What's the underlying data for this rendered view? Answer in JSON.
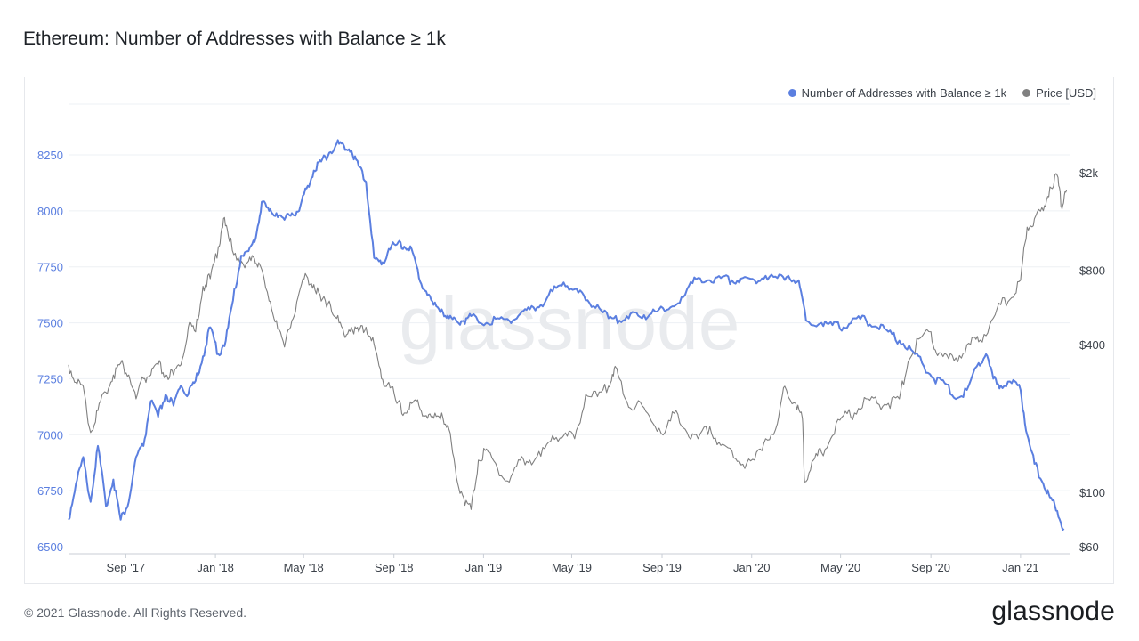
{
  "page": {
    "title": "Ethereum: Number of Addresses with Balance ≥ 1k",
    "footer": "© 2021 Glassnode. All Rights Reserved.",
    "brand": "glassnode",
    "watermark": "glassnode"
  },
  "colors": {
    "addresses": "#5b7fe0",
    "price": "#808080",
    "grid": "#edf0f4",
    "left_axis_text": "#5b7fe0",
    "right_axis_text": "#3b4149"
  },
  "chart_data": {
    "type": "line",
    "title": "Ethereum: Number of Addresses with Balance ≥ 1k",
    "x_ticks": [
      "Sep '17",
      "Jan '18",
      "May '18",
      "Sep '18",
      "Jan '19",
      "May '19",
      "Sep '19",
      "Jan '20",
      "May '20",
      "Sep '20",
      "Jan '21"
    ],
    "x_tick_dates": [
      "2017-09-01",
      "2018-01-01",
      "2018-05-01",
      "2018-09-01",
      "2019-01-01",
      "2019-05-01",
      "2019-09-01",
      "2020-01-01",
      "2020-05-01",
      "2020-09-01",
      "2021-01-01"
    ],
    "x_range": [
      "2017-06-15",
      "2021-03-10"
    ],
    "y_left": {
      "ticks": [
        6500,
        6750,
        7000,
        7250,
        7500,
        7750,
        8000,
        8250
      ],
      "range": [
        6500,
        8350
      ],
      "scale": "linear"
    },
    "y_right": {
      "ticks": [
        60,
        100,
        400,
        800,
        2000
      ],
      "tick_labels": [
        "$60",
        "$100",
        "$400",
        "$800",
        "$2k"
      ],
      "range": [
        60,
        2800
      ],
      "scale": "log"
    },
    "grid": true,
    "legend_position": "top-right",
    "series": [
      {
        "name": "Number of Addresses with Balance ≥ 1k",
        "axis": "left",
        "color": "#5b7fe0",
        "points": [
          [
            "2017-06-15",
            6620
          ],
          [
            "2017-06-25",
            6780
          ],
          [
            "2017-07-05",
            6900
          ],
          [
            "2017-07-15",
            6700
          ],
          [
            "2017-07-25",
            6950
          ],
          [
            "2017-08-05",
            6680
          ],
          [
            "2017-08-15",
            6800
          ],
          [
            "2017-08-25",
            6620
          ],
          [
            "2017-09-05",
            6700
          ],
          [
            "2017-09-15",
            6900
          ],
          [
            "2017-09-25",
            6950
          ],
          [
            "2017-10-05",
            7150
          ],
          [
            "2017-10-15",
            7080
          ],
          [
            "2017-10-25",
            7180
          ],
          [
            "2017-11-05",
            7130
          ],
          [
            "2017-11-15",
            7220
          ],
          [
            "2017-11-25",
            7180
          ],
          [
            "2017-12-05",
            7240
          ],
          [
            "2017-12-15",
            7350
          ],
          [
            "2017-12-25",
            7480
          ],
          [
            "2018-01-05",
            7360
          ],
          [
            "2018-01-15",
            7420
          ],
          [
            "2018-01-25",
            7600
          ],
          [
            "2018-02-05",
            7800
          ],
          [
            "2018-02-15",
            7820
          ],
          [
            "2018-02-25",
            7880
          ],
          [
            "2018-03-05",
            8040
          ],
          [
            "2018-03-15",
            8000
          ],
          [
            "2018-03-25",
            7990
          ],
          [
            "2018-04-05",
            7960
          ],
          [
            "2018-04-15",
            7990
          ],
          [
            "2018-04-25",
            8000
          ],
          [
            "2018-05-05",
            8100
          ],
          [
            "2018-05-15",
            8180
          ],
          [
            "2018-05-25",
            8220
          ],
          [
            "2018-06-05",
            8260
          ],
          [
            "2018-06-15",
            8300
          ],
          [
            "2018-06-25",
            8290
          ],
          [
            "2018-07-05",
            8270
          ],
          [
            "2018-07-15",
            8200
          ],
          [
            "2018-07-25",
            8130
          ],
          [
            "2018-08-05",
            7790
          ],
          [
            "2018-08-15",
            7760
          ],
          [
            "2018-08-25",
            7830
          ],
          [
            "2018-09-05",
            7850
          ],
          [
            "2018-09-15",
            7840
          ],
          [
            "2018-09-25",
            7830
          ],
          [
            "2018-10-05",
            7700
          ],
          [
            "2018-10-15",
            7640
          ],
          [
            "2018-10-25",
            7580
          ],
          [
            "2018-11-05",
            7560
          ],
          [
            "2018-11-15",
            7520
          ],
          [
            "2018-11-25",
            7510
          ],
          [
            "2018-12-05",
            7510
          ],
          [
            "2018-12-15",
            7530
          ],
          [
            "2019-01-05",
            7500
          ],
          [
            "2019-01-20",
            7520
          ],
          [
            "2019-02-05",
            7510
          ],
          [
            "2019-02-20",
            7540
          ],
          [
            "2019-03-05",
            7560
          ],
          [
            "2019-03-20",
            7580
          ],
          [
            "2019-04-05",
            7640
          ],
          [
            "2019-04-20",
            7680
          ],
          [
            "2019-05-05",
            7650
          ],
          [
            "2019-05-20",
            7600
          ],
          [
            "2019-06-05",
            7580
          ],
          [
            "2019-06-20",
            7520
          ],
          [
            "2019-07-05",
            7510
          ],
          [
            "2019-07-20",
            7540
          ],
          [
            "2019-08-05",
            7520
          ],
          [
            "2019-08-20",
            7560
          ],
          [
            "2019-09-05",
            7550
          ],
          [
            "2019-09-20",
            7580
          ],
          [
            "2019-10-05",
            7650
          ],
          [
            "2019-10-20",
            7700
          ],
          [
            "2019-11-05",
            7690
          ],
          [
            "2019-11-20",
            7700
          ],
          [
            "2019-12-05",
            7690
          ],
          [
            "2019-12-20",
            7700
          ],
          [
            "2020-01-05",
            7690
          ],
          [
            "2020-01-20",
            7710
          ],
          [
            "2020-02-05",
            7700
          ],
          [
            "2020-02-20",
            7710
          ],
          [
            "2020-03-05",
            7690
          ],
          [
            "2020-03-15",
            7510
          ],
          [
            "2020-04-05",
            7500
          ],
          [
            "2020-04-20",
            7490
          ],
          [
            "2020-05-05",
            7480
          ],
          [
            "2020-05-20",
            7520
          ],
          [
            "2020-06-05",
            7510
          ],
          [
            "2020-06-20",
            7480
          ],
          [
            "2020-07-05",
            7460
          ],
          [
            "2020-07-20",
            7420
          ],
          [
            "2020-08-05",
            7380
          ],
          [
            "2020-08-20",
            7320
          ],
          [
            "2020-09-05",
            7250
          ],
          [
            "2020-09-20",
            7230
          ],
          [
            "2020-10-05",
            7160
          ],
          [
            "2020-10-20",
            7200
          ],
          [
            "2020-11-05",
            7320
          ],
          [
            "2020-11-15",
            7360
          ],
          [
            "2020-11-25",
            7250
          ],
          [
            "2020-12-05",
            7220
          ],
          [
            "2020-12-20",
            7230
          ],
          [
            "2021-01-01",
            7200
          ],
          [
            "2021-01-10",
            7000
          ],
          [
            "2021-01-20",
            6870
          ],
          [
            "2021-02-01",
            6780
          ],
          [
            "2021-02-10",
            6720
          ],
          [
            "2021-02-20",
            6660
          ],
          [
            "2021-03-01",
            6580
          ]
        ]
      },
      {
        "name": "Price [USD]",
        "axis": "right",
        "color": "#808080",
        "points": [
          [
            "2017-06-15",
            330
          ],
          [
            "2017-06-25",
            280
          ],
          [
            "2017-07-05",
            270
          ],
          [
            "2017-07-15",
            175
          ],
          [
            "2017-07-25",
            215
          ],
          [
            "2017-08-05",
            255
          ],
          [
            "2017-08-15",
            300
          ],
          [
            "2017-08-25",
            335
          ],
          [
            "2017-09-05",
            300
          ],
          [
            "2017-09-15",
            240
          ],
          [
            "2017-09-25",
            290
          ],
          [
            "2017-10-05",
            300
          ],
          [
            "2017-10-15",
            330
          ],
          [
            "2017-10-25",
            300
          ],
          [
            "2017-11-05",
            300
          ],
          [
            "2017-11-15",
            330
          ],
          [
            "2017-11-25",
            470
          ],
          [
            "2017-12-05",
            450
          ],
          [
            "2017-12-15",
            690
          ],
          [
            "2017-12-25",
            740
          ],
          [
            "2018-01-05",
            1000
          ],
          [
            "2018-01-12",
            1300
          ],
          [
            "2018-01-20",
            1050
          ],
          [
            "2018-02-01",
            900
          ],
          [
            "2018-02-10",
            820
          ],
          [
            "2018-02-20",
            920
          ],
          [
            "2018-03-01",
            860
          ],
          [
            "2018-03-15",
            600
          ],
          [
            "2018-03-25",
            500
          ],
          [
            "2018-04-05",
            390
          ],
          [
            "2018-04-15",
            500
          ],
          [
            "2018-04-25",
            650
          ],
          [
            "2018-05-05",
            760
          ],
          [
            "2018-05-15",
            700
          ],
          [
            "2018-05-25",
            600
          ],
          [
            "2018-06-05",
            600
          ],
          [
            "2018-06-15",
            510
          ],
          [
            "2018-06-25",
            440
          ],
          [
            "2018-07-05",
            470
          ],
          [
            "2018-07-15",
            450
          ],
          [
            "2018-07-25",
            470
          ],
          [
            "2018-08-05",
            400
          ],
          [
            "2018-08-15",
            290
          ],
          [
            "2018-08-25",
            280
          ],
          [
            "2018-09-05",
            230
          ],
          [
            "2018-09-15",
            210
          ],
          [
            "2018-09-25",
            230
          ],
          [
            "2018-10-05",
            225
          ],
          [
            "2018-10-15",
            205
          ],
          [
            "2018-10-25",
            200
          ],
          [
            "2018-11-05",
            210
          ],
          [
            "2018-11-15",
            180
          ],
          [
            "2018-11-25",
            115
          ],
          [
            "2018-12-05",
            95
          ],
          [
            "2018-12-15",
            85
          ],
          [
            "2018-12-25",
            135
          ],
          [
            "2019-01-05",
            150
          ],
          [
            "2019-01-20",
            125
          ],
          [
            "2019-02-05",
            110
          ],
          [
            "2019-02-20",
            135
          ],
          [
            "2019-03-05",
            135
          ],
          [
            "2019-03-20",
            140
          ],
          [
            "2019-04-05",
            170
          ],
          [
            "2019-04-20",
            170
          ],
          [
            "2019-05-05",
            165
          ],
          [
            "2019-05-20",
            250
          ],
          [
            "2019-06-05",
            245
          ],
          [
            "2019-06-20",
            270
          ],
          [
            "2019-06-28",
            320
          ],
          [
            "2019-07-05",
            290
          ],
          [
            "2019-07-20",
            220
          ],
          [
            "2019-08-05",
            225
          ],
          [
            "2019-08-20",
            190
          ],
          [
            "2019-09-05",
            175
          ],
          [
            "2019-09-20",
            215
          ],
          [
            "2019-10-05",
            175
          ],
          [
            "2019-10-20",
            165
          ],
          [
            "2019-11-05",
            185
          ],
          [
            "2019-11-20",
            155
          ],
          [
            "2019-12-05",
            148
          ],
          [
            "2019-12-20",
            130
          ],
          [
            "2020-01-05",
            135
          ],
          [
            "2020-01-20",
            165
          ],
          [
            "2020-02-05",
            190
          ],
          [
            "2020-02-15",
            270
          ],
          [
            "2020-03-01",
            230
          ],
          [
            "2020-03-10",
            200
          ],
          [
            "2020-03-13",
            110
          ],
          [
            "2020-03-25",
            135
          ],
          [
            "2020-04-05",
            145
          ],
          [
            "2020-04-20",
            170
          ],
          [
            "2020-05-05",
            205
          ],
          [
            "2020-05-20",
            210
          ],
          [
            "2020-06-05",
            240
          ],
          [
            "2020-06-20",
            230
          ],
          [
            "2020-07-05",
            230
          ],
          [
            "2020-07-20",
            240
          ],
          [
            "2020-08-01",
            340
          ],
          [
            "2020-08-15",
            420
          ],
          [
            "2020-09-01",
            450
          ],
          [
            "2020-09-10",
            360
          ],
          [
            "2020-09-25",
            350
          ],
          [
            "2020-10-10",
            360
          ],
          [
            "2020-10-25",
            400
          ],
          [
            "2020-11-05",
            410
          ],
          [
            "2020-11-20",
            480
          ],
          [
            "2020-12-05",
            580
          ],
          [
            "2020-12-20",
            620
          ],
          [
            "2021-01-01",
            730
          ],
          [
            "2021-01-10",
            1200
          ],
          [
            "2021-01-20",
            1300
          ],
          [
            "2021-02-01",
            1400
          ],
          [
            "2021-02-10",
            1750
          ],
          [
            "2021-02-20",
            1950
          ],
          [
            "2021-02-26",
            1450
          ],
          [
            "2021-03-01",
            1550
          ],
          [
            "2021-03-05",
            1700
          ]
        ]
      }
    ]
  }
}
